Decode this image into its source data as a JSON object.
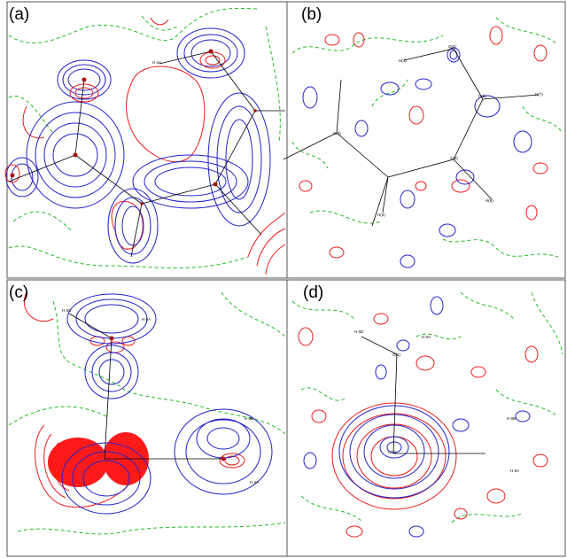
{
  "panels": [
    {
      "id": "a",
      "label": "(a)",
      "atoms": [
        "H 4A"
      ]
    },
    {
      "id": "b",
      "label": "(b)",
      "atoms": [
        "H(4)",
        "O(4)",
        "C(5)",
        "C(6)",
        "H(6)",
        "H(3)",
        "C(3)",
        "H(7)"
      ]
    },
    {
      "id": "c",
      "label": "(c)",
      "atoms": [
        "H 5C",
        "H 6A",
        "H 6B",
        "H 5A"
      ]
    },
    {
      "id": "d",
      "label": "(d)",
      "atoms": [
        "H 5D",
        "H 6A",
        "O(4)",
        "H 6B",
        "H 5A",
        "C(1)"
      ]
    }
  ],
  "colors": {
    "positive": "#ee1c1c",
    "negative": "#2222cc",
    "zero": "#22bb22",
    "bond": "#000000",
    "frame": "#555555"
  }
}
